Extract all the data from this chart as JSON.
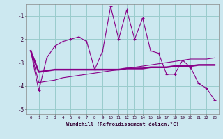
{
  "xlabel": "Windchill (Refroidissement éolien,°C)",
  "background_color": "#cce8f0",
  "line_color": "#880088",
  "grid_color": "#99cccc",
  "x": [
    0,
    1,
    2,
    3,
    4,
    5,
    6,
    7,
    8,
    9,
    10,
    11,
    12,
    13,
    14,
    15,
    16,
    17,
    18,
    19,
    20,
    21,
    22,
    23
  ],
  "line1_y": [
    -2.5,
    -4.2,
    -2.8,
    -2.3,
    -2.1,
    -2.0,
    -1.9,
    -2.1,
    -3.3,
    -2.5,
    -0.6,
    -2.0,
    -0.75,
    -2.0,
    -1.1,
    -2.5,
    -2.6,
    -3.5,
    -3.5,
    -2.9,
    -3.2,
    -3.9,
    -4.1,
    -4.6
  ],
  "line2_y": [
    -2.5,
    -3.4,
    -3.35,
    -3.3,
    -3.3,
    -3.3,
    -3.3,
    -3.3,
    -3.3,
    -3.3,
    -3.3,
    -3.3,
    -3.25,
    -3.25,
    -3.25,
    -3.2,
    -3.2,
    -3.2,
    -3.15,
    -3.15,
    -3.15,
    -3.1,
    -3.1,
    -3.1
  ],
  "line3_y": [
    -2.5,
    -3.85,
    -3.8,
    -3.75,
    -3.65,
    -3.6,
    -3.55,
    -3.5,
    -3.45,
    -3.4,
    -3.35,
    -3.3,
    -3.25,
    -3.2,
    -3.15,
    -3.1,
    -3.05,
    -3.0,
    -2.95,
    -2.9,
    -2.85,
    -2.85,
    -2.85,
    -2.8
  ],
  "ylim": [
    -5.2,
    -0.5
  ],
  "yticks": [
    -5,
    -4,
    -3,
    -2,
    -1
  ],
  "xlim": [
    -0.5,
    23.5
  ],
  "figsize": [
    3.2,
    2.0
  ],
  "dpi": 100
}
